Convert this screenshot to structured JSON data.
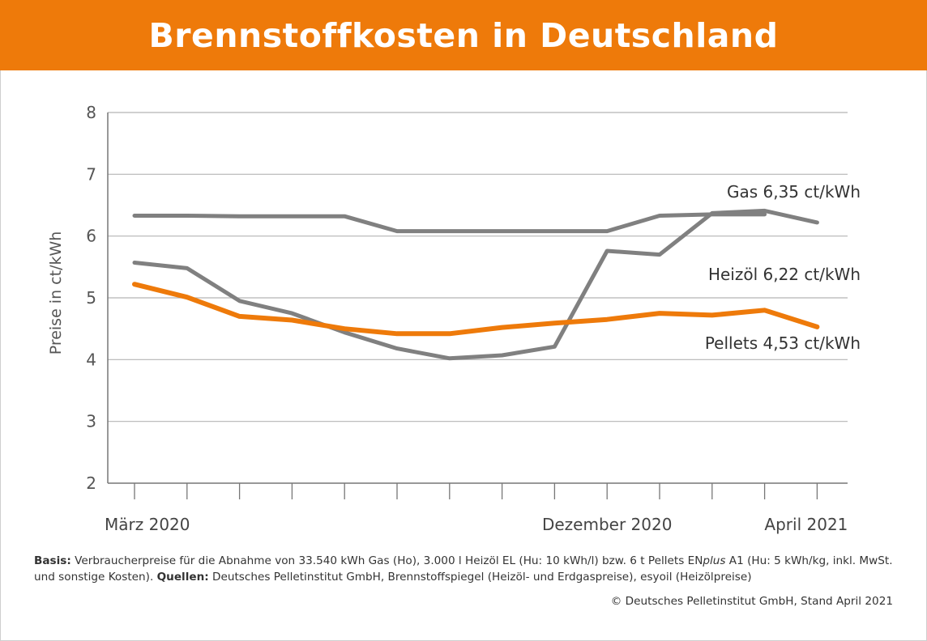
{
  "banner": {
    "title": "Brennstoffkosten in Deutschland"
  },
  "chart_data": {
    "type": "line",
    "title": "Brennstoffkosten in Deutschland",
    "ylabel": "Preise in ct/kWh",
    "xlabel": "",
    "ylim": [
      2,
      8
    ],
    "yticks": [
      2,
      3,
      4,
      5,
      6,
      7,
      8
    ],
    "x_labels": [
      {
        "index": 0,
        "text": "März 2020"
      },
      {
        "index": 9,
        "text": "Dezember 2020"
      },
      {
        "index": 13,
        "text": "April 2021"
      }
    ],
    "grid": true,
    "series": [
      {
        "name": "Gas",
        "label": "Gas 6,35 ct/kWh",
        "color": "#808080",
        "values": [
          6.33,
          6.33,
          6.32,
          6.32,
          6.32,
          6.08,
          6.08,
          6.08,
          6.08,
          6.08,
          6.33,
          6.35,
          6.35,
          null
        ]
      },
      {
        "name": "Heizöl",
        "label": "Heizöl 6,22 ct/kWh",
        "color": "#808080",
        "values": [
          5.57,
          5.48,
          4.95,
          4.75,
          4.44,
          4.18,
          4.02,
          4.07,
          4.21,
          5.76,
          5.7,
          6.37,
          6.41,
          6.22
        ]
      },
      {
        "name": "Pellets",
        "label": "Pellets 4,53 ct/kWh",
        "color": "#ee7a0a",
        "values": [
          5.22,
          5.01,
          4.7,
          4.64,
          4.5,
          4.42,
          4.42,
          4.52,
          4.59,
          4.65,
          4.75,
          4.72,
          4.8,
          4.53
        ]
      }
    ]
  },
  "footnote": {
    "basis_label": "Basis:",
    "basis_text_a": " Verbraucherpreise für die Abnahme von 33.540 kWh Gas (Ho), 3.000 l Heizöl EL (Hu: 10 kWh/l) bzw. 6 t Pellets EN",
    "basis_plus": "plus",
    "basis_text_b": " A1 (Hu: 5 kWh/kg, inkl. MwSt. und sonstige Kosten). ",
    "sources_label": "Quellen:",
    "sources_text": " Deutsches Pelletinstitut GmbH, Brennstoffspiegel (Heizöl- und Erdgaspreise), esyoil (Heizölpreise)"
  },
  "credit": "© Deutsches Pelletinstitut GmbH, Stand April 2021"
}
